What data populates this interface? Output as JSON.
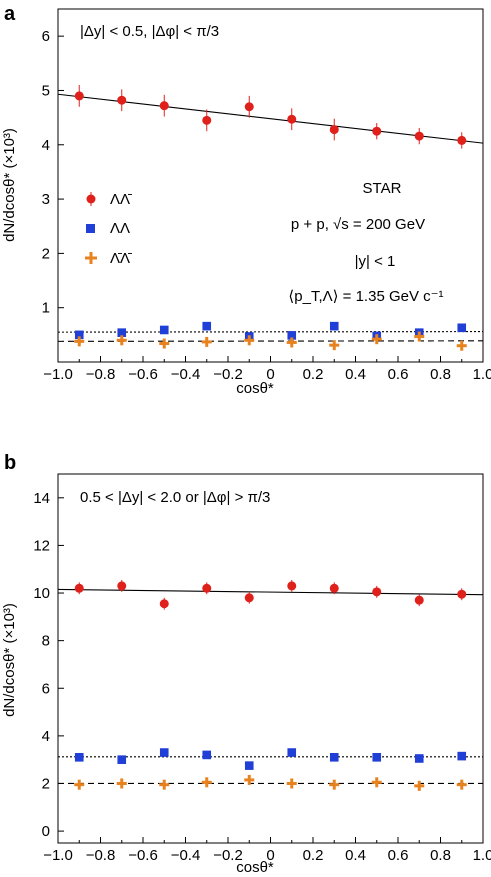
{
  "chart_data": [
    {
      "type": "scatter",
      "panel_label": "a",
      "annotation": "|Δy| < 0.5, |Δφ| < π/3",
      "xlabel": "cosθ*",
      "ylabel": "dN/dcosθ* (×10³)",
      "xlim": [
        -1.0,
        1.0
      ],
      "ylim": [
        0,
        6.5
      ],
      "xticks": [
        "−1.0",
        "−0.8",
        "−0.6",
        "−0.4",
        "−0.2",
        "0",
        "0.2",
        "0.4",
        "0.6",
        "0.8",
        "1.0"
      ],
      "yticks": [
        "1",
        "2",
        "3",
        "4",
        "5",
        "6"
      ],
      "legend": {
        "position": "middle-left",
        "entries": [
          "ΛΛ̄",
          "ΛΛ",
          "Λ̄Λ̄"
        ]
      },
      "info_text": [
        "STAR",
        "p + p, √s = 200 GeV",
        "|y| < 1",
        "⟨p_T,Λ⟩ = 1.35 GeV c⁻¹"
      ],
      "x": [
        -0.9,
        -0.7,
        -0.5,
        -0.3,
        -0.1,
        0.1,
        0.3,
        0.5,
        0.7,
        0.9
      ],
      "series": [
        {
          "name": "ΛΛ̄",
          "marker": "circle",
          "color": "#e0201b",
          "values": [
            4.9,
            4.82,
            4.72,
            4.45,
            4.7,
            4.47,
            4.28,
            4.25,
            4.16,
            4.08
          ],
          "errors": [
            0.2,
            0.2,
            0.2,
            0.2,
            0.2,
            0.2,
            0.2,
            0.15,
            0.15,
            0.15
          ]
        },
        {
          "name": "ΛΛ",
          "marker": "square",
          "color": "#1f3fd6",
          "values": [
            0.5,
            0.54,
            0.59,
            0.66,
            0.47,
            0.49,
            0.66,
            0.48,
            0.54,
            0.63
          ],
          "errors": [
            0.03,
            0.03,
            0.03,
            0.03,
            0.03,
            0.03,
            0.03,
            0.03,
            0.03,
            0.03
          ]
        },
        {
          "name": "Λ̄Λ̄",
          "marker": "cross",
          "color": "#e8821e",
          "values": [
            0.38,
            0.4,
            0.34,
            0.37,
            0.4,
            0.36,
            0.31,
            0.42,
            0.47,
            0.3
          ],
          "errors": [
            0.04,
            0.04,
            0.04,
            0.04,
            0.04,
            0.04,
            0.04,
            0.04,
            0.04,
            0.04
          ]
        }
      ],
      "fits": [
        {
          "style": "solid",
          "from": [
            -1.0,
            4.93
          ],
          "to": [
            1.0,
            4.03
          ]
        },
        {
          "style": "dotted",
          "from": [
            -1.0,
            0.55
          ],
          "to": [
            1.0,
            0.56
          ]
        },
        {
          "style": "dashed",
          "from": [
            -1.0,
            0.38
          ],
          "to": [
            1.0,
            0.39
          ]
        }
      ]
    },
    {
      "type": "scatter",
      "panel_label": "b",
      "annotation": "0.5 < |Δy| < 2.0 or |Δφ| > π/3",
      "xlabel": "cosθ*",
      "ylabel": "dN/dcosθ* (×10³)",
      "xlim": [
        -1.0,
        1.0
      ],
      "ylim": [
        -0.5,
        15
      ],
      "xticks": [
        "−1.0",
        "−0.8",
        "−0.6",
        "−0.4",
        "−0.2",
        "0",
        "0.2",
        "0.4",
        "0.6",
        "0.8",
        "1.0"
      ],
      "yticks": [
        "0",
        "2",
        "4",
        "6",
        "8",
        "10",
        "12",
        "14"
      ],
      "x": [
        -0.9,
        -0.7,
        -0.5,
        -0.3,
        -0.1,
        0.1,
        0.3,
        0.5,
        0.7,
        0.9
      ],
      "series": [
        {
          "name": "ΛΛ̄",
          "marker": "circle",
          "color": "#e0201b",
          "values": [
            10.2,
            10.3,
            9.55,
            10.2,
            9.8,
            10.3,
            10.2,
            10.05,
            9.7,
            9.95
          ],
          "errors": [
            0.25,
            0.25,
            0.25,
            0.25,
            0.25,
            0.25,
            0.25,
            0.25,
            0.25,
            0.25
          ]
        },
        {
          "name": "ΛΛ",
          "marker": "square",
          "color": "#1f3fd6",
          "values": [
            3.1,
            3.0,
            3.3,
            3.2,
            2.75,
            3.3,
            3.1,
            3.1,
            3.05,
            3.15
          ],
          "errors": [
            0.08,
            0.08,
            0.08,
            0.08,
            0.08,
            0.08,
            0.08,
            0.08,
            0.08,
            0.08
          ]
        },
        {
          "name": "Λ̄Λ̄",
          "marker": "cross",
          "color": "#e8821e",
          "values": [
            1.95,
            2.0,
            1.95,
            2.05,
            2.15,
            2.0,
            1.95,
            2.05,
            1.9,
            1.95
          ],
          "errors": [
            0.08,
            0.08,
            0.08,
            0.08,
            0.08,
            0.08,
            0.08,
            0.08,
            0.08,
            0.08
          ]
        }
      ],
      "fits": [
        {
          "style": "solid",
          "from": [
            -1.0,
            10.15
          ],
          "to": [
            1.0,
            9.93
          ]
        },
        {
          "style": "dotted",
          "from": [
            -1.0,
            3.12
          ],
          "to": [
            1.0,
            3.12
          ]
        },
        {
          "style": "dashed",
          "from": [
            -1.0,
            2.0
          ],
          "to": [
            1.0,
            2.0
          ]
        }
      ]
    }
  ]
}
